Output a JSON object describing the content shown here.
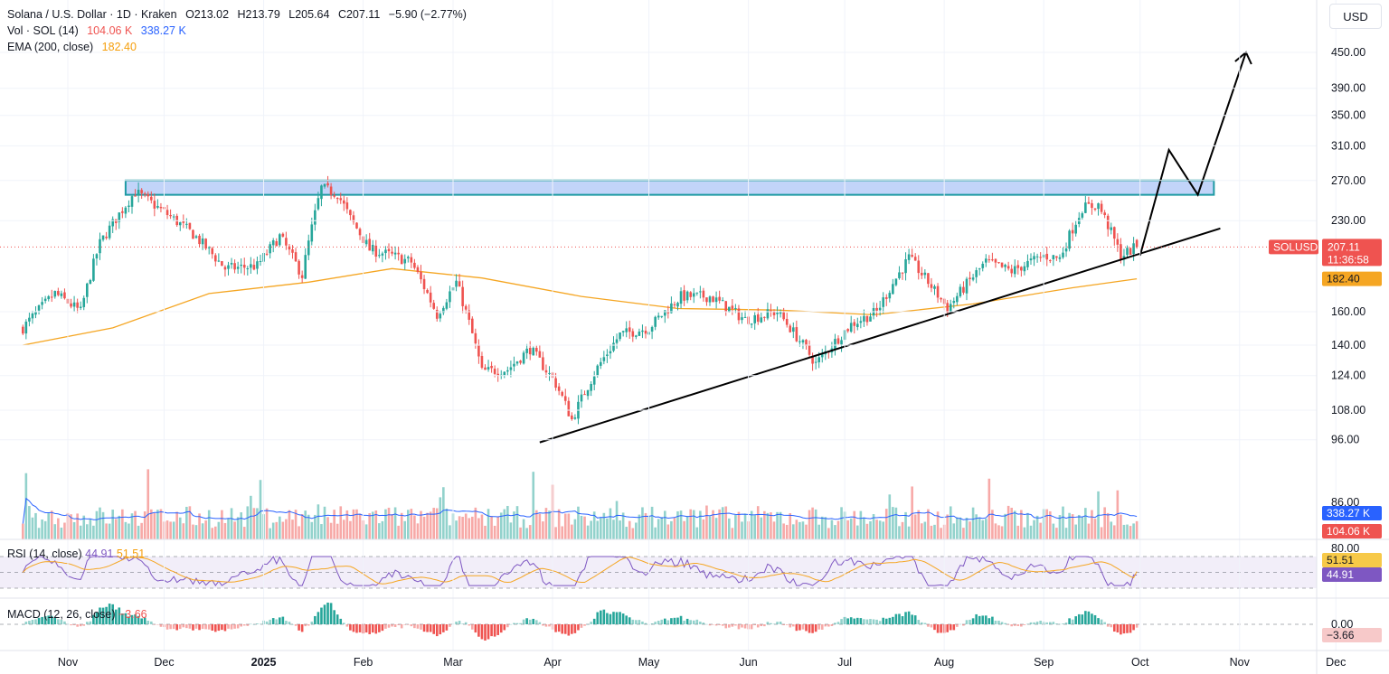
{
  "legend": {
    "symbol": "Solana / U.S. Dollar · 1D · Kraken",
    "open": "O213.02",
    "high": "H213.79",
    "low": "L205.64",
    "close": "C207.11",
    "change": "−5.90 (−2.77%)",
    "vol_label": "Vol · SOL (14)",
    "vol_value": "104.06 K",
    "vol_ma": "338.27 K",
    "ema_label": "EMA (200, close)",
    "ema_value": "182.40"
  },
  "currency": "USD",
  "price_axis": [
    "450.00",
    "390.00",
    "350.00",
    "310.00",
    "270.00",
    "230.00",
    "160.00",
    "140.00",
    "124.00",
    "108.00",
    "96.00",
    "86.00"
  ],
  "time_axis": [
    "Nov",
    "Dec",
    "2025",
    "Feb",
    "Mar",
    "Apr",
    "May",
    "Jun",
    "Jul",
    "Aug",
    "Sep",
    "Oct",
    "Nov",
    "Dec"
  ],
  "tags": {
    "symbol_tag": "SOLUSD",
    "last_price": "207.11",
    "countdown": "11:36:58",
    "ema": "182.40",
    "vol_ma": "338.27 K",
    "vol": "104.06 K",
    "rsi_upper": "80.00",
    "rsi_ma": "51.51",
    "rsi": "44.91",
    "macd_zero": "0.00",
    "macd": "−3.66"
  },
  "rsi_pane": {
    "title": "RSI (14, close)",
    "value": "44.91",
    "ma_value": "51.51"
  },
  "macd_pane": {
    "title": "MACD (12, 26, close)",
    "value": "−3.66"
  },
  "colors": {
    "up": "#26a69a",
    "down": "#ef5350",
    "ema": "#f5a623",
    "volume_ma": "#2962ff",
    "rsi": "#7e57c2",
    "zone_fill": "#aec6f7",
    "zone_border": "#1e9aa3",
    "trendline": "#000000"
  },
  "chart_data": {
    "type": "candlestick",
    "symbol": "Solana / U.S. Dollar",
    "interval": "1D",
    "exchange": "Kraken",
    "price_scale": "log",
    "last": {
      "open": 213.02,
      "high": 213.79,
      "low": 205.64,
      "close": 207.11
    },
    "close_path": [
      [
        "2024-10-18",
        150
      ],
      [
        "2024-10-28",
        172
      ],
      [
        "2024-11-05",
        160
      ],
      [
        "2024-11-11",
        210
      ],
      [
        "2024-11-22",
        258
      ],
      [
        "2024-12-01",
        238
      ],
      [
        "2024-12-10",
        218
      ],
      [
        "2024-12-20",
        190
      ],
      [
        "2024-12-30",
        192
      ],
      [
        "2025-01-06",
        216
      ],
      [
        "2025-01-13",
        185
      ],
      [
        "2025-01-19",
        262
      ],
      [
        "2025-01-24",
        256
      ],
      [
        "2025-01-28",
        232
      ],
      [
        "2025-02-03",
        205
      ],
      [
        "2025-02-10",
        200
      ],
      [
        "2025-02-16",
        195
      ],
      [
        "2025-02-24",
        158
      ],
      [
        "2025-03-02",
        180
      ],
      [
        "2025-03-10",
        126
      ],
      [
        "2025-03-18",
        127
      ],
      [
        "2025-03-25",
        138
      ],
      [
        "2025-04-02",
        120
      ],
      [
        "2025-04-07",
        104
      ],
      [
        "2025-04-15",
        128
      ],
      [
        "2025-04-22",
        146
      ],
      [
        "2025-05-01",
        150
      ],
      [
        "2025-05-11",
        170
      ],
      [
        "2025-05-20",
        170
      ],
      [
        "2025-05-31",
        155
      ],
      [
        "2025-06-10",
        160
      ],
      [
        "2025-06-22",
        130
      ],
      [
        "2025-07-03",
        152
      ],
      [
        "2025-07-11",
        160
      ],
      [
        "2025-07-21",
        198
      ],
      [
        "2025-08-02",
        162
      ],
      [
        "2025-08-14",
        195
      ],
      [
        "2025-08-22",
        188
      ],
      [
        "2025-09-01",
        200
      ],
      [
        "2025-09-06",
        198
      ],
      [
        "2025-09-13",
        242
      ],
      [
        "2025-09-18",
        245
      ],
      [
        "2025-09-25",
        200
      ],
      [
        "2025-09-30",
        207.11
      ]
    ],
    "ema200_path": [
      [
        "2024-10-18",
        140
      ],
      [
        "2024-11-15",
        150
      ],
      [
        "2024-12-15",
        172
      ],
      [
        "2025-01-15",
        180
      ],
      [
        "2025-02-10",
        190
      ],
      [
        "2025-03-10",
        183
      ],
      [
        "2025-04-10",
        170
      ],
      [
        "2025-05-10",
        162
      ],
      [
        "2025-06-10",
        161
      ],
      [
        "2025-07-10",
        158
      ],
      [
        "2025-08-10",
        165
      ],
      [
        "2025-09-10",
        176
      ],
      [
        "2025-09-30",
        182.4
      ]
    ],
    "resistance_zone": {
      "from": "2024-11-19",
      "to": "2025-10-24",
      "low": 255,
      "high": 270
    },
    "trendline": {
      "start": [
        "2025-03-28",
        95
      ],
      "end": [
        "2025-10-26",
        223
      ]
    },
    "projection_path": [
      [
        "2025-10-01",
        200
      ],
      [
        "2025-10-10",
        305
      ],
      [
        "2025-10-19",
        255
      ],
      [
        "2025-11-03",
        450
      ]
    ],
    "volume": {
      "ma_value": "338.27K",
      "last_value": "104.06K"
    },
    "rsi": {
      "length": 14,
      "value": 44.91,
      "ma": 51.51,
      "upper": 80,
      "lower": 20
    },
    "macd": {
      "fast": 12,
      "slow": 26,
      "value": -3.66
    }
  }
}
